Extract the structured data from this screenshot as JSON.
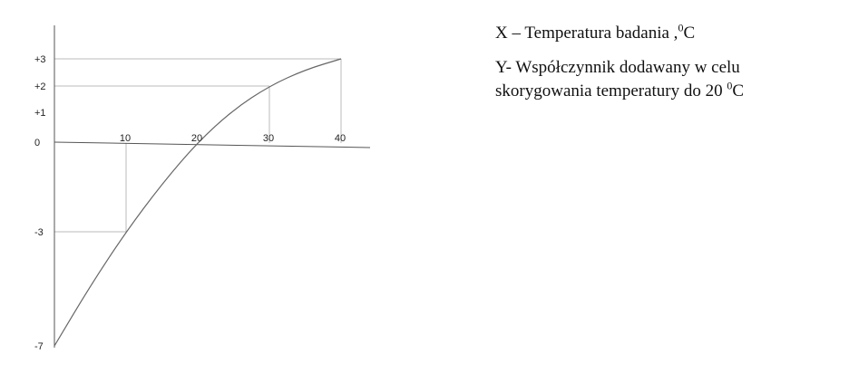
{
  "chart_data": {
    "type": "line",
    "x": [
      0,
      5,
      10,
      15,
      20,
      25,
      30,
      35,
      40
    ],
    "y": [
      -7,
      -4.9,
      -3,
      -1.4,
      0,
      1.1,
      2,
      2.6,
      3
    ],
    "ylim": [
      -7,
      3
    ],
    "xlim": [
      0,
      42
    ],
    "x_ticks": [
      "10",
      "20",
      "30",
      "40"
    ],
    "y_ticks": [
      "+3",
      "+2",
      "+1",
      "0",
      "-3",
      "-7"
    ],
    "guides": [
      {
        "x": 10,
        "y": -3
      },
      {
        "x": 30,
        "y": 2
      },
      {
        "x": 40,
        "y": 3
      }
    ],
    "grid": false
  },
  "legend": {
    "x_label_text": "X – Temperatura badania ,",
    "x_label_sup": "0",
    "x_label_unit": "C",
    "y_label_text": "Y- Współczynnik dodawany w celu skorygowania temperatury do 20 ",
    "y_label_sup": "0",
    "y_label_unit": "C"
  },
  "colors": {
    "axis": "#555555",
    "curve": "#666666",
    "guide": "#bbbbbb",
    "text": "#111111"
  }
}
